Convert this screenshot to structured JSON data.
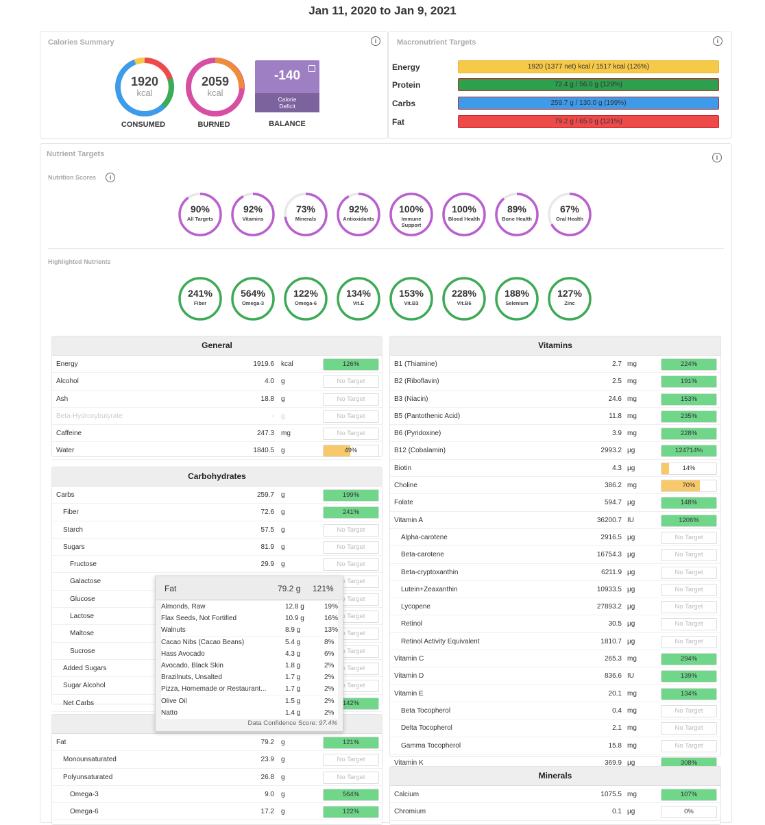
{
  "date_range": "Jan 11, 2020 to Jan 9, 2021",
  "calories": {
    "title": "Calories Summary",
    "consumed": {
      "value": "1920",
      "unit": "kcal",
      "label": "CONSUMED"
    },
    "burned": {
      "value": "2059",
      "unit": "kcal",
      "label": "BURNED"
    },
    "balance": {
      "value": "-140",
      "caption1": "Calorie",
      "caption2": "Deficit",
      "label": "BALANCE"
    }
  },
  "macros": {
    "title": "Macronutrient Targets",
    "rows": [
      {
        "name": "Energy",
        "text": "1920 (1377 net) kcal / 1517 kcal (126%)",
        "color": "#f7c948",
        "border": "#e6b93a"
      },
      {
        "name": "Protein",
        "text": "72.4 g / 56.0 g (129%)",
        "color": "#2e9e4f",
        "border": "#c62828"
      },
      {
        "name": "Carbs",
        "text": "259.7 g / 130.0 g (199%)",
        "color": "#3d9be9",
        "border": "#c62828"
      },
      {
        "name": "Fat",
        "text": "79.2 g / 65.0 g (121%)",
        "color": "#ef4a4a",
        "border": "#c62828"
      }
    ]
  },
  "nutrient_targets": {
    "title": "Nutrient Targets",
    "scores_title": "Nutrition Scores",
    "scores": [
      {
        "pct": "90%",
        "label": "All Targets",
        "value": 0.9
      },
      {
        "pct": "92%",
        "label": "Vitamins",
        "value": 0.92
      },
      {
        "pct": "73%",
        "label": "Minerals",
        "value": 0.73
      },
      {
        "pct": "92%",
        "label": "Antioxidants",
        "value": 0.92
      },
      {
        "pct": "100%",
        "label": "Immune Support",
        "value": 1.0
      },
      {
        "pct": "100%",
        "label": "Blood Health",
        "value": 1.0
      },
      {
        "pct": "89%",
        "label": "Bone Health",
        "value": 0.89
      },
      {
        "pct": "67%",
        "label": "Oral Health",
        "value": 0.67
      }
    ],
    "highlighted_title": "Highlighted Nutrients",
    "highlighted": [
      {
        "pct": "241%",
        "label": "Fiber"
      },
      {
        "pct": "564%",
        "label": "Omega-3"
      },
      {
        "pct": "122%",
        "label": "Omega-6"
      },
      {
        "pct": "134%",
        "label": "Vit.E"
      },
      {
        "pct": "153%",
        "label": "Vit.B3"
      },
      {
        "pct": "228%",
        "label": "Vit.B6"
      },
      {
        "pct": "188%",
        "label": "Selenium"
      },
      {
        "pct": "127%",
        "label": "Zinc"
      }
    ]
  },
  "general": {
    "title": "General",
    "rows": [
      {
        "name": "Energy",
        "amount": "1919.6",
        "unit": "kcal",
        "pct": "126%",
        "fill": 1.0,
        "color": "#6fd68a"
      },
      {
        "name": "Alcohol",
        "amount": "4.0",
        "unit": "g",
        "pct": "No Target",
        "fill": 0,
        "color": ""
      },
      {
        "name": "Ash",
        "amount": "18.8",
        "unit": "g",
        "pct": "No Target",
        "fill": 0,
        "color": ""
      },
      {
        "name": "Beta-Hydroxybutyrate",
        "amount": "-",
        "unit": "g",
        "pct": "No Target",
        "fill": 0,
        "color": "",
        "muted": true
      },
      {
        "name": "Caffeine",
        "amount": "247.3",
        "unit": "mg",
        "pct": "No Target",
        "fill": 0,
        "color": ""
      },
      {
        "name": "Water",
        "amount": "1840.5",
        "unit": "g",
        "pct": "49%",
        "fill": 0.49,
        "color": "#f7c96b"
      }
    ]
  },
  "carbohydrates": {
    "title": "Carbohydrates",
    "rows": [
      {
        "name": "Carbs",
        "indent": 0,
        "amount": "259.7",
        "unit": "g",
        "pct": "199%",
        "fill": 1.0,
        "color": "#6fd68a"
      },
      {
        "name": "Fiber",
        "indent": 1,
        "amount": "72.6",
        "unit": "g",
        "pct": "241%",
        "fill": 1.0,
        "color": "#6fd68a"
      },
      {
        "name": "Starch",
        "indent": 1,
        "amount": "57.5",
        "unit": "g",
        "pct": "No Target",
        "fill": 0,
        "color": ""
      },
      {
        "name": "Sugars",
        "indent": 1,
        "amount": "81.9",
        "unit": "g",
        "pct": "No Target",
        "fill": 0,
        "color": ""
      },
      {
        "name": "Fructose",
        "indent": 2,
        "amount": "29.9",
        "unit": "g",
        "pct": "No Target",
        "fill": 0,
        "color": ""
      },
      {
        "name": "Galactose",
        "indent": 2,
        "amount": "",
        "unit": "",
        "pct": "No Target",
        "fill": 0,
        "color": ""
      },
      {
        "name": "Glucose",
        "indent": 2,
        "amount": "",
        "unit": "",
        "pct": "No Target",
        "fill": 0,
        "color": ""
      },
      {
        "name": "Lactose",
        "indent": 2,
        "amount": "",
        "unit": "",
        "pct": "No Target",
        "fill": 0,
        "color": ""
      },
      {
        "name": "Maltose",
        "indent": 2,
        "amount": "",
        "unit": "",
        "pct": "No Target",
        "fill": 0,
        "color": ""
      },
      {
        "name": "Sucrose",
        "indent": 2,
        "amount": "",
        "unit": "",
        "pct": "No Target",
        "fill": 0,
        "color": ""
      },
      {
        "name": "Added Sugars",
        "indent": 1,
        "amount": "",
        "unit": "",
        "pct": "No Target",
        "fill": 0,
        "color": ""
      },
      {
        "name": "Sugar Alcohol",
        "indent": 1,
        "amount": "",
        "unit": "",
        "pct": "No Target",
        "fill": 0,
        "color": ""
      },
      {
        "name": "Net Carbs",
        "indent": 1,
        "amount": "",
        "unit": "",
        "pct": "142%",
        "fill": 1.0,
        "color": "#6fd68a"
      }
    ]
  },
  "lipids": {
    "rows": [
      {
        "name": "Fat",
        "indent": 0,
        "amount": "79.2",
        "unit": "g",
        "pct": "121%",
        "fill": 1.0,
        "color": "#6fd68a"
      },
      {
        "name": "Monounsaturated",
        "indent": 1,
        "amount": "23.9",
        "unit": "g",
        "pct": "No Target",
        "fill": 0,
        "color": ""
      },
      {
        "name": "Polyunsaturated",
        "indent": 1,
        "amount": "26.8",
        "unit": "g",
        "pct": "No Target",
        "fill": 0,
        "color": ""
      },
      {
        "name": "Omega-3",
        "indent": 2,
        "amount": "9.0",
        "unit": "g",
        "pct": "564%",
        "fill": 1.0,
        "color": "#6fd68a"
      },
      {
        "name": "Omega-6",
        "indent": 2,
        "amount": "17.2",
        "unit": "g",
        "pct": "122%",
        "fill": 1.0,
        "color": "#6fd68a"
      }
    ]
  },
  "vitamins": {
    "title": "Vitamins",
    "rows": [
      {
        "name": "B1 (Thiamine)",
        "indent": 0,
        "amount": "2.7",
        "unit": "mg",
        "pct": "224%",
        "fill": 1.0,
        "color": "#6fd68a"
      },
      {
        "name": "B2 (Riboflavin)",
        "indent": 0,
        "amount": "2.5",
        "unit": "mg",
        "pct": "191%",
        "fill": 1.0,
        "color": "#6fd68a"
      },
      {
        "name": "B3 (Niacin)",
        "indent": 0,
        "amount": "24.6",
        "unit": "mg",
        "pct": "153%",
        "fill": 1.0,
        "color": "#6fd68a"
      },
      {
        "name": "B5 (Pantothenic Acid)",
        "indent": 0,
        "amount": "11.8",
        "unit": "mg",
        "pct": "235%",
        "fill": 1.0,
        "color": "#6fd68a"
      },
      {
        "name": "B6 (Pyridoxine)",
        "indent": 0,
        "amount": "3.9",
        "unit": "mg",
        "pct": "228%",
        "fill": 1.0,
        "color": "#6fd68a"
      },
      {
        "name": "B12 (Cobalamin)",
        "indent": 0,
        "amount": "2993.2",
        "unit": "µg",
        "pct": "124714%",
        "fill": 1.0,
        "color": "#6fd68a"
      },
      {
        "name": "Biotin",
        "indent": 0,
        "amount": "4.3",
        "unit": "µg",
        "pct": "14%",
        "fill": 0.14,
        "color": "#f7c96b"
      },
      {
        "name": "Choline",
        "indent": 0,
        "amount": "386.2",
        "unit": "mg",
        "pct": "70%",
        "fill": 0.7,
        "color": "#f7c96b"
      },
      {
        "name": "Folate",
        "indent": 0,
        "amount": "594.7",
        "unit": "µg",
        "pct": "148%",
        "fill": 1.0,
        "color": "#6fd68a"
      },
      {
        "name": "Vitamin A",
        "indent": 0,
        "amount": "36200.7",
        "unit": "IU",
        "pct": "1206%",
        "fill": 1.0,
        "color": "#6fd68a"
      },
      {
        "name": "Alpha-carotene",
        "indent": 1,
        "amount": "2916.5",
        "unit": "µg",
        "pct": "No Target",
        "fill": 0,
        "color": ""
      },
      {
        "name": "Beta-carotene",
        "indent": 1,
        "amount": "16754.3",
        "unit": "µg",
        "pct": "No Target",
        "fill": 0,
        "color": ""
      },
      {
        "name": "Beta-cryptoxanthin",
        "indent": 1,
        "amount": "6211.9",
        "unit": "µg",
        "pct": "No Target",
        "fill": 0,
        "color": ""
      },
      {
        "name": "Lutein+Zeaxanthin",
        "indent": 1,
        "amount": "10933.5",
        "unit": "µg",
        "pct": "No Target",
        "fill": 0,
        "color": ""
      },
      {
        "name": "Lycopene",
        "indent": 1,
        "amount": "27893.2",
        "unit": "µg",
        "pct": "No Target",
        "fill": 0,
        "color": ""
      },
      {
        "name": "Retinol",
        "indent": 1,
        "amount": "30.5",
        "unit": "µg",
        "pct": "No Target",
        "fill": 0,
        "color": ""
      },
      {
        "name": "Retinol Activity Equivalent",
        "indent": 1,
        "amount": "1810.7",
        "unit": "µg",
        "pct": "No Target",
        "fill": 0,
        "color": ""
      },
      {
        "name": "Vitamin C",
        "indent": 0,
        "amount": "265.3",
        "unit": "mg",
        "pct": "294%",
        "fill": 1.0,
        "color": "#6fd68a"
      },
      {
        "name": "Vitamin D",
        "indent": 0,
        "amount": "836.6",
        "unit": "IU",
        "pct": "139%",
        "fill": 1.0,
        "color": "#6fd68a"
      },
      {
        "name": "Vitamin E",
        "indent": 0,
        "amount": "20.1",
        "unit": "mg",
        "pct": "134%",
        "fill": 1.0,
        "color": "#6fd68a"
      },
      {
        "name": "Beta Tocopherol",
        "indent": 1,
        "amount": "0.4",
        "unit": "mg",
        "pct": "No Target",
        "fill": 0,
        "color": ""
      },
      {
        "name": "Delta Tocopherol",
        "indent": 1,
        "amount": "2.1",
        "unit": "mg",
        "pct": "No Target",
        "fill": 0,
        "color": ""
      },
      {
        "name": "Gamma Tocopherol",
        "indent": 1,
        "amount": "15.8",
        "unit": "mg",
        "pct": "No Target",
        "fill": 0,
        "color": ""
      },
      {
        "name": "Vitamin K",
        "indent": 0,
        "amount": "369.9",
        "unit": "µg",
        "pct": "308%",
        "fill": 1.0,
        "color": "#6fd68a"
      }
    ]
  },
  "minerals": {
    "title": "Minerals",
    "rows": [
      {
        "name": "Calcium",
        "indent": 0,
        "amount": "1075.5",
        "unit": "mg",
        "pct": "107%",
        "fill": 1.0,
        "color": "#6fd68a"
      },
      {
        "name": "Chromium",
        "indent": 0,
        "amount": "0.1",
        "unit": "µg",
        "pct": "0%",
        "fill": 0,
        "color": ""
      }
    ]
  },
  "tooltip": {
    "title": "Fat",
    "amount": "79.2 g",
    "pct": "121%",
    "items": [
      {
        "name": "Almonds, Raw",
        "amount": "12.8 g",
        "pct": "19%"
      },
      {
        "name": "Flax Seeds, Not Fortified",
        "amount": "10.9 g",
        "pct": "16%"
      },
      {
        "name": "Walnuts",
        "amount": "8.9 g",
        "pct": "13%"
      },
      {
        "name": "Cacao Nibs (Cacao Beans)",
        "amount": "5.4 g",
        "pct": "8%"
      },
      {
        "name": "Hass Avocado",
        "amount": "4.3 g",
        "pct": "6%"
      },
      {
        "name": "Avocado, Black Skin",
        "amount": "1.8 g",
        "pct": "2%"
      },
      {
        "name": "Brazilnuts, Unsalted",
        "amount": "1.7 g",
        "pct": "2%"
      },
      {
        "name": "Pizza, Homemade or Restaurant...",
        "amount": "1.7 g",
        "pct": "2%"
      },
      {
        "name": "Olive Oil",
        "amount": "1.5 g",
        "pct": "2%"
      },
      {
        "name": "Natto",
        "amount": "1.4 g",
        "pct": "2%"
      }
    ],
    "confidence_label": "Data Confidence Score:",
    "confidence_value": "97.4%"
  },
  "colors": {
    "score_ring": "#b95fcf",
    "highlight_ring": "#3daa55",
    "ring_track": "#e8e8e8"
  }
}
